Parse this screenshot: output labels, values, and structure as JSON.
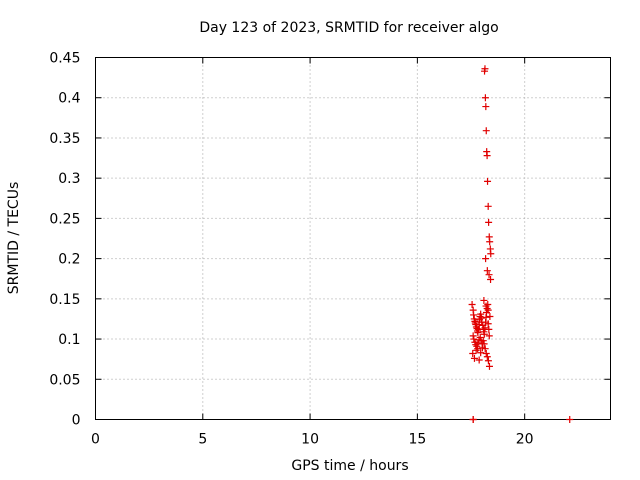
{
  "chart_data": {
    "type": "scatter",
    "title": "Day 123 of 2023, SRMTID for receiver algo",
    "xlabel": "GPS time / hours",
    "ylabel": "SRMTID / TECUs",
    "xlim": [
      0,
      24
    ],
    "ylim": [
      0,
      0.45
    ],
    "x_ticks": [
      0,
      5,
      10,
      15,
      20
    ],
    "x_tick_labels": [
      "0",
      "5",
      "10",
      "15",
      "20"
    ],
    "y_ticks": [
      0,
      0.05,
      0.1,
      0.15,
      0.2,
      0.25,
      0.3,
      0.35,
      0.4,
      0.45
    ],
    "y_tick_labels": [
      "0",
      "0.05",
      "0.1",
      "0.15",
      "0.2",
      "0.25",
      "0.3",
      "0.35",
      "0.4",
      "0.45"
    ],
    "grid": true,
    "marker": "plus",
    "color": "#e00000",
    "series": [
      {
        "x": [
          17.55,
          17.6,
          17.62,
          17.65,
          17.68,
          17.7,
          17.72,
          17.75,
          17.78,
          17.8,
          17.82,
          17.85,
          17.88,
          17.9,
          17.92,
          17.95,
          17.98,
          18.0,
          17.6,
          17.63,
          17.68,
          17.72,
          17.77,
          17.82,
          17.87,
          17.93,
          17.97,
          18.02,
          17.58,
          17.66,
          17.74,
          17.81,
          17.88,
          17.95,
          18.03,
          18.05,
          18.08,
          18.1,
          18.12,
          18.15,
          18.18,
          18.2,
          18.22,
          18.25,
          18.28,
          18.3,
          18.33,
          18.35,
          18.07,
          18.11,
          18.16,
          18.21,
          18.26,
          18.31,
          18.36,
          18.1,
          18.2,
          18.3,
          18.38,
          18.13,
          18.15,
          18.17,
          18.19,
          18.21,
          18.23,
          18.25,
          18.27,
          18.3,
          18.32,
          18.35,
          18.37,
          18.4,
          18.42,
          18.18,
          18.26,
          18.34,
          18.41,
          17.6,
          17.6,
          22.1
        ],
        "y": [
          0.143,
          0.136,
          0.13,
          0.125,
          0.122,
          0.12,
          0.118,
          0.115,
          0.113,
          0.11,
          0.108,
          0.112,
          0.118,
          0.124,
          0.128,
          0.131,
          0.126,
          0.121,
          0.104,
          0.1,
          0.096,
          0.093,
          0.091,
          0.095,
          0.099,
          0.102,
          0.098,
          0.094,
          0.082,
          0.076,
          0.086,
          0.088,
          0.074,
          0.083,
          0.089,
          0.117,
          0.112,
          0.109,
          0.106,
          0.114,
          0.121,
          0.127,
          0.133,
          0.138,
          0.143,
          0.119,
          0.112,
          0.104,
          0.098,
          0.094,
          0.088,
          0.082,
          0.078,
          0.073,
          0.066,
          0.148,
          0.141,
          0.136,
          0.128,
          0.433,
          0.436,
          0.4,
          0.389,
          0.359,
          0.333,
          0.328,
          0.296,
          0.265,
          0.245,
          0.227,
          0.221,
          0.212,
          0.206,
          0.2,
          0.185,
          0.18,
          0.174,
          0.0,
          0.0,
          0.0
        ]
      }
    ]
  }
}
